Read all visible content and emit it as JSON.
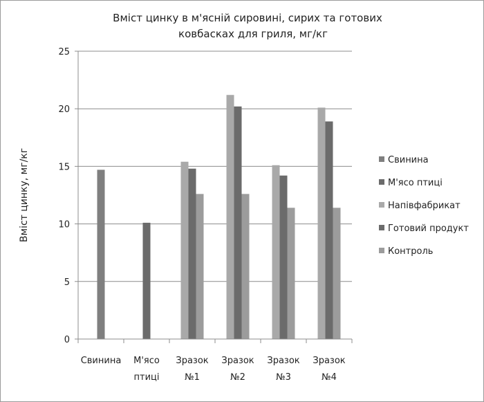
{
  "chart_data": {
    "type": "bar",
    "title": [
      "Вміст цинку в м'ясній сировині, сирих та готових",
      "ковбасках для гриля, мг/кг"
    ],
    "ylabel": "Вміст цинку, мг/кг",
    "xlabel": "",
    "ylim": [
      0,
      25
    ],
    "yticks": [
      "0",
      "5",
      "10",
      "15",
      "20",
      "25"
    ],
    "categories": [
      [
        "Свинина"
      ],
      [
        "М'ясо",
        "птиці"
      ],
      [
        "Зразок",
        "№1"
      ],
      [
        "Зразок",
        "№2"
      ],
      [
        "Зразок",
        "№3"
      ],
      [
        "Зразок",
        "№4"
      ]
    ],
    "grid": true,
    "legend_position": "right",
    "series": [
      {
        "name": "Свинина",
        "color": "#7f7f7f",
        "values": [
          14.7,
          null,
          null,
          null,
          null,
          null
        ]
      },
      {
        "name": "М'ясо птиці",
        "color": "#6b6b6b",
        "values": [
          null,
          10.1,
          null,
          null,
          null,
          null
        ]
      },
      {
        "name": "Напівфабрикат",
        "color": "#a9a9a9",
        "values": [
          null,
          null,
          15.4,
          21.2,
          15.1,
          20.1
        ]
      },
      {
        "name": "Готовий продукт",
        "color": "#6b6b6b",
        "values": [
          null,
          null,
          14.8,
          20.2,
          14.2,
          18.9
        ]
      },
      {
        "name": "Контроль",
        "color": "#9c9c9c",
        "values": [
          null,
          null,
          12.6,
          12.6,
          11.4,
          11.4
        ]
      }
    ]
  }
}
